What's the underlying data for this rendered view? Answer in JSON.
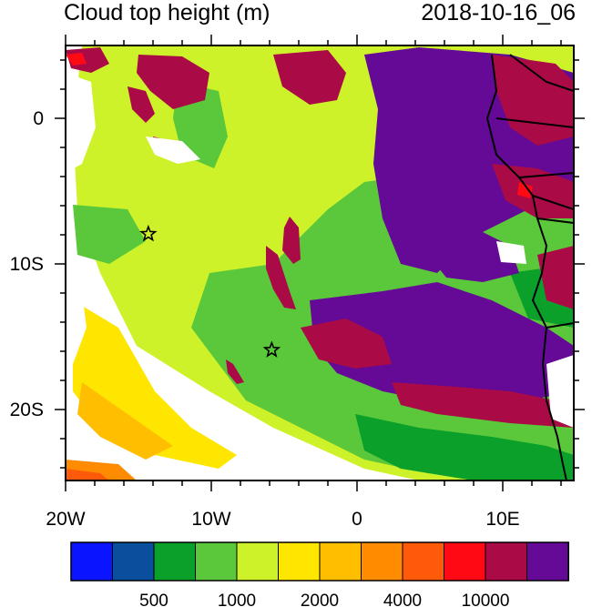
{
  "title_left": "Cloud top height (m)",
  "title_right": "2018-10-16_06",
  "axes": {
    "lon_labels": [
      "20W",
      "10W",
      "0",
      "10E"
    ],
    "lat_labels": [
      "0",
      "10S",
      "20S"
    ]
  },
  "colorbar": {
    "colors": [
      "#0a14ff",
      "#0a4e9e",
      "#0aa02a",
      "#5ac83a",
      "#cdf22a",
      "#ffe600",
      "#ffbe00",
      "#ff8c00",
      "#ff5a0a",
      "#ff0a14",
      "#aa0a46",
      "#640a96"
    ],
    "labels": [
      "500",
      "1000",
      "2000",
      "4000",
      "10000"
    ]
  },
  "markers": [
    {
      "name": "star-marker-8s",
      "lon": -14.3,
      "lat": -8
    },
    {
      "name": "star-marker-16s",
      "lon": -5.8,
      "lat": -16
    }
  ]
}
